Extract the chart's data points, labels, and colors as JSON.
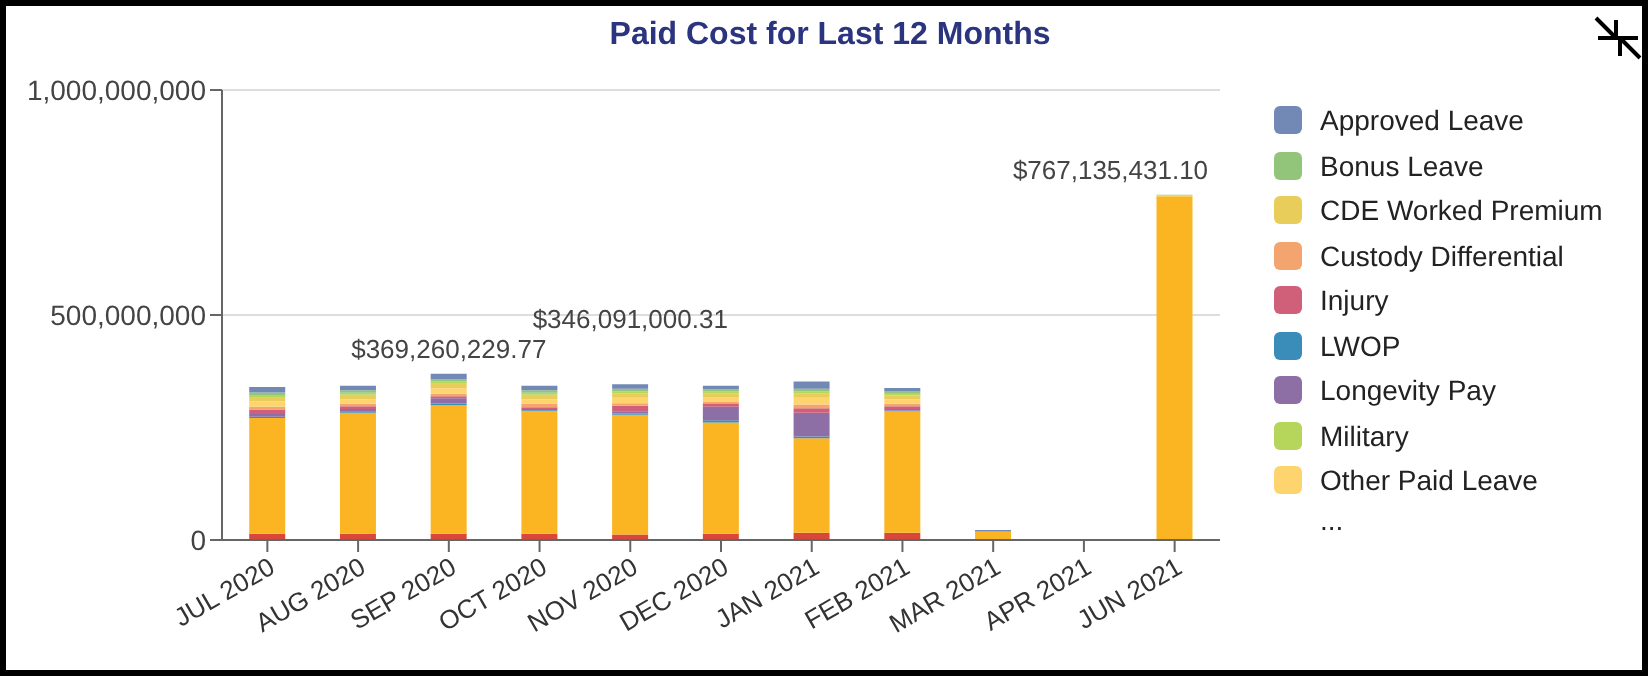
{
  "chart_data": {
    "type": "bar",
    "title": "Paid Cost for Last 12 Months",
    "stacked": true,
    "categories": [
      "JUL 2020",
      "AUG 2020",
      "SEP 2020",
      "OCT 2020",
      "NOV 2020",
      "DEC 2020",
      "JAN 2021",
      "FEB 2021",
      "MAR 2021",
      "APR 2021",
      "JUN 2021"
    ],
    "series": [
      {
        "color": "#d9473a",
        "values": [
          14000000,
          14000000,
          14000000,
          14000000,
          12000000,
          14000000,
          16000000,
          16000000,
          0,
          null,
          2000000
        ]
      },
      {
        "color": "#fbb522",
        "values": [
          257000000,
          269000000,
          285260229.77,
          273000000,
          266091000.31,
          247000000,
          210000000,
          270000000,
          18000000,
          null,
          762135431.1
        ]
      },
      {
        "name": "LWOP",
        "color": "#3a8db8",
        "values": [
          3000000,
          3000000,
          4000000,
          2000000,
          3000000,
          5000000,
          4000000,
          2000000,
          0,
          null,
          0
        ]
      },
      {
        "name": "Longevity Pay",
        "color": "#8d6fa5",
        "values": [
          6000000,
          5000000,
          12000000,
          2000000,
          5000000,
          30000000,
          53000000,
          3000000,
          0,
          null,
          0
        ]
      },
      {
        "name": "Injury",
        "color": "#d0607a",
        "values": [
          10000000,
          6000000,
          4000000,
          4000000,
          12000000,
          6000000,
          10000000,
          6000000,
          0,
          null,
          0
        ]
      },
      {
        "name": "Custody Differential",
        "color": "#f4a46f",
        "values": [
          6000000,
          6000000,
          6000000,
          8000000,
          6000000,
          6000000,
          8000000,
          6000000,
          0,
          null,
          0
        ]
      },
      {
        "name": "Other Paid Leave",
        "color": "#fdd46e",
        "values": [
          12000000,
          10000000,
          12000000,
          10000000,
          12000000,
          10000000,
          15000000,
          10000000,
          0,
          null,
          1000000
        ]
      },
      {
        "name": "CDE Worked Premium",
        "color": "#e9cd5a",
        "values": [
          10000000,
          10000000,
          10000000,
          10000000,
          10000000,
          8000000,
          10000000,
          8000000,
          0,
          null,
          1000000
        ]
      },
      {
        "name": "Military",
        "color": "#b5d55b",
        "values": [
          4000000,
          4000000,
          5000000,
          4000000,
          4000000,
          4000000,
          4000000,
          4000000,
          0,
          null,
          0
        ]
      },
      {
        "name": "Bonus Leave",
        "color": "#92c47a",
        "values": [
          6000000,
          6000000,
          5000000,
          6000000,
          6000000,
          5000000,
          6000000,
          5000000,
          2000000,
          null,
          1000000
        ]
      },
      {
        "name": "Approved Leave",
        "color": "#7189b4",
        "values": [
          12000000,
          10000000,
          12000000,
          10000000,
          10000000,
          8000000,
          16000000,
          8000000,
          2000000,
          null,
          0
        ]
      }
    ],
    "totals": [
      null,
      null,
      "$369,260,229.77",
      null,
      "$346,091,000.31",
      null,
      null,
      null,
      null,
      null,
      "$767,135,431.10"
    ],
    "ylim": [
      0,
      1000000000
    ],
    "yticks": [
      {
        "value": 0,
        "label": "0"
      },
      {
        "value": 500000000,
        "label": "500,000,000"
      },
      {
        "value": 1000000000,
        "label": "1,000,000,000"
      }
    ],
    "grid": "y",
    "legend": "right",
    "annotations": [
      "..."
    ]
  }
}
